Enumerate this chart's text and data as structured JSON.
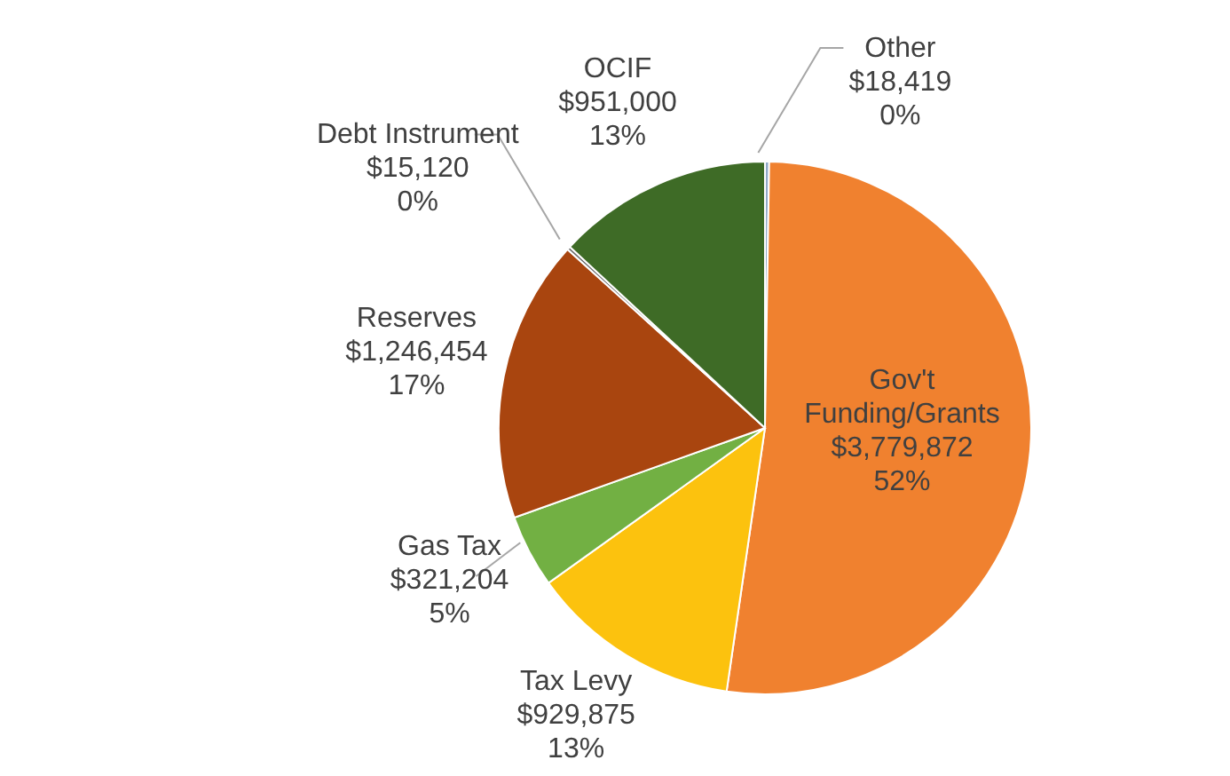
{
  "chart_data": {
    "type": "pie",
    "categories": [
      "Other",
      "Gov't Funding/Grants",
      "Tax Levy",
      "Gas Tax",
      "Reserves",
      "Debt Instrument",
      "OCIF"
    ],
    "values": [
      18419,
      3779872,
      929875,
      321204,
      1246454,
      15120,
      951000
    ],
    "value_labels": [
      "$18,419\n0%",
      "$3,779,872\n52%",
      "$929,875\n13%",
      "$321,204\n5%",
      "$1,246,454\n17%",
      "$15,120\n0%",
      "$951,000\n13%"
    ],
    "colors": [
      "#8fa9c8",
      "#f0812f",
      "#fcc20e",
      "#72b043",
      "#a9450f",
      "#6b6b6b",
      "#3e6b26"
    ],
    "legend": false
  }
}
